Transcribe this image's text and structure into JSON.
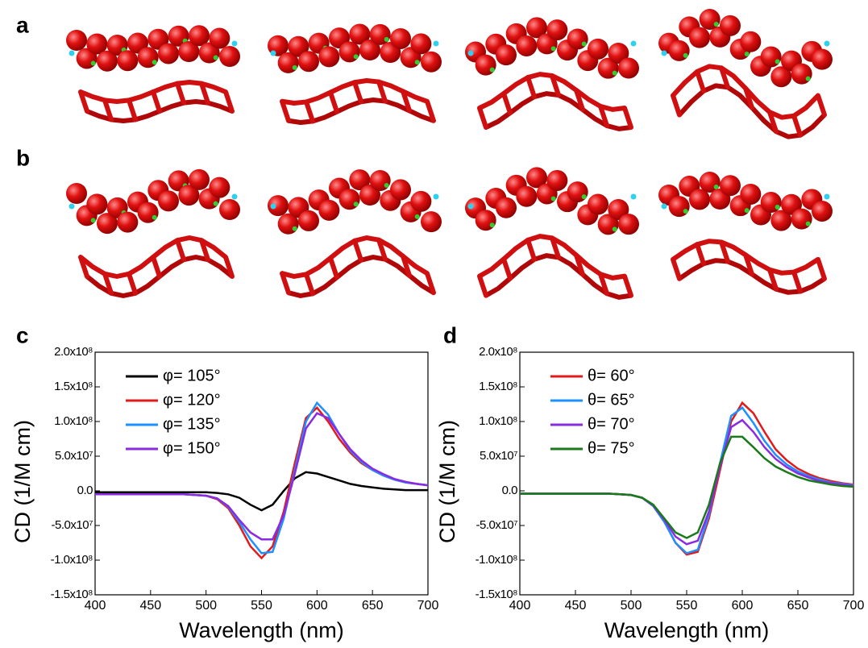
{
  "panel_labels": [
    "a",
    "b",
    "c",
    "d"
  ],
  "chart_data": [
    {
      "type": "line",
      "ylabel": "CD (1/M cm)",
      "xlabel": "Wavelength (nm)",
      "xlim": [
        400,
        700
      ],
      "xticks": [
        400,
        450,
        500,
        550,
        600,
        650,
        700
      ],
      "ylim": [
        -150000000.0,
        200000000.0
      ],
      "yticks": [
        {
          "value": -150000000.0,
          "label": "-1.5x10⁸"
        },
        {
          "value": -100000000.0,
          "label": "-1.0x10⁸"
        },
        {
          "value": -50000000.0,
          "label": "-5.0x10⁷"
        },
        {
          "value": 0,
          "label": "0.0"
        },
        {
          "value": 50000000.0,
          "label": "5.0x10⁷"
        },
        {
          "value": 100000000.0,
          "label": "1.0x10⁸"
        },
        {
          "value": 150000000.0,
          "label": "1.5x10⁸"
        },
        {
          "value": 200000000.0,
          "label": "2.0x10⁸"
        }
      ],
      "legend": "upper left",
      "x": [
        400,
        410,
        420,
        430,
        440,
        450,
        460,
        470,
        480,
        490,
        500,
        510,
        520,
        530,
        540,
        550,
        560,
        570,
        580,
        590,
        600,
        610,
        620,
        630,
        640,
        650,
        660,
        670,
        680,
        690,
        700
      ],
      "series": [
        {
          "name": "φ= 105°",
          "color": "#000000",
          "values": [
            -2000000.0,
            -2000000.0,
            -2000000.0,
            -2000000.0,
            -2000000.0,
            -2000000.0,
            -2000000.0,
            -2000000.0,
            -2000000.0,
            -2000000.0,
            -2000000.0,
            -3000000.0,
            -5000000.0,
            -10000000.0,
            -20000000.0,
            -28000000.0,
            -20000000.0,
            0,
            18000000.0,
            27000000.0,
            25000000.0,
            20000000.0,
            15000000.0,
            10000000.0,
            7000000.0,
            5000000.0,
            3000000.0,
            2000000.0,
            1000000.0,
            1000000.0,
            1000000.0
          ]
        },
        {
          "name": "φ= 120°",
          "color": "#e31a1c",
          "values": [
            -5000000.0,
            -5000000.0,
            -5000000.0,
            -5000000.0,
            -5000000.0,
            -5000000.0,
            -5000000.0,
            -5000000.0,
            -5000000.0,
            -6000000.0,
            -7000000.0,
            -12000000.0,
            -25000000.0,
            -50000000.0,
            -80000000.0,
            -97000000.0,
            -80000000.0,
            -30000000.0,
            40000000.0,
            105000000.0,
            120000000.0,
            100000000.0,
            75000000.0,
            55000000.0,
            40000000.0,
            30000000.0,
            22000000.0,
            16000000.0,
            12000000.0,
            10000000.0,
            8000000.0
          ]
        },
        {
          "name": "φ= 135°",
          "color": "#1e90ff",
          "values": [
            -5000000.0,
            -5000000.0,
            -5000000.0,
            -5000000.0,
            -5000000.0,
            -5000000.0,
            -5000000.0,
            -5000000.0,
            -5000000.0,
            -6000000.0,
            -7000000.0,
            -11000000.0,
            -23000000.0,
            -45000000.0,
            -70000000.0,
            -90000000.0,
            -88000000.0,
            -40000000.0,
            30000000.0,
            100000000.0,
            127000000.0,
            110000000.0,
            82000000.0,
            58000000.0,
            42000000.0,
            30000000.0,
            22000000.0,
            16000000.0,
            12000000.0,
            10000000.0,
            8000000.0
          ]
        },
        {
          "name": "φ= 150°",
          "color": "#8a2be2",
          "values": [
            -5000000.0,
            -5000000.0,
            -5000000.0,
            -5000000.0,
            -5000000.0,
            -5000000.0,
            -5000000.0,
            -5000000.0,
            -5000000.0,
            -6000000.0,
            -7000000.0,
            -11000000.0,
            -22000000.0,
            -42000000.0,
            -60000000.0,
            -70000000.0,
            -70000000.0,
            -35000000.0,
            25000000.0,
            90000000.0,
            112000000.0,
            105000000.0,
            82000000.0,
            60000000.0,
            44000000.0,
            32000000.0,
            24000000.0,
            17000000.0,
            13000000.0,
            10000000.0,
            8000000.0
          ]
        }
      ]
    },
    {
      "type": "line",
      "ylabel": "CD (1/M cm)",
      "xlabel": "Wavelength (nm)",
      "xlim": [
        400,
        700
      ],
      "xticks": [
        400,
        450,
        500,
        550,
        600,
        650,
        700
      ],
      "ylim": [
        -150000000.0,
        200000000.0
      ],
      "yticks": [
        {
          "value": -150000000.0,
          "label": "-1.5x10⁸"
        },
        {
          "value": -100000000.0,
          "label": "-1.0x10⁸"
        },
        {
          "value": -50000000.0,
          "label": "-5.0x10⁷"
        },
        {
          "value": 0,
          "label": "0.0"
        },
        {
          "value": 50000000.0,
          "label": "5.0x10⁷"
        },
        {
          "value": 100000000.0,
          "label": "1.0x10⁸"
        },
        {
          "value": 150000000.0,
          "label": "1.5x10⁸"
        },
        {
          "value": 200000000.0,
          "label": "2.0x10⁸"
        }
      ],
      "legend": "upper left",
      "x": [
        400,
        410,
        420,
        430,
        440,
        450,
        460,
        470,
        480,
        490,
        500,
        510,
        520,
        530,
        540,
        550,
        560,
        570,
        580,
        590,
        600,
        610,
        620,
        630,
        640,
        650,
        660,
        670,
        680,
        690,
        700
      ],
      "series": [
        {
          "name": "θ= 60°",
          "color": "#e31a1c",
          "values": [
            -4000000.0,
            -4000000.0,
            -4000000.0,
            -4000000.0,
            -4000000.0,
            -4000000.0,
            -4000000.0,
            -4000000.0,
            -4000000.0,
            -5000000.0,
            -6000000.0,
            -10000000.0,
            -22000000.0,
            -45000000.0,
            -75000000.0,
            -92000000.0,
            -88000000.0,
            -40000000.0,
            30000000.0,
            100000000.0,
            127000000.0,
            112000000.0,
            85000000.0,
            60000000.0,
            44000000.0,
            32000000.0,
            24000000.0,
            18000000.0,
            14000000.0,
            11000000.0,
            9000000.0
          ]
        },
        {
          "name": "θ= 65°",
          "color": "#1e90ff",
          "values": [
            -4000000.0,
            -4000000.0,
            -4000000.0,
            -4000000.0,
            -4000000.0,
            -4000000.0,
            -4000000.0,
            -4000000.0,
            -4000000.0,
            -5000000.0,
            -6000000.0,
            -10000000.0,
            -22000000.0,
            -45000000.0,
            -75000000.0,
            -90000000.0,
            -85000000.0,
            -35000000.0,
            40000000.0,
            108000000.0,
            120000000.0,
            98000000.0,
            72000000.0,
            52000000.0,
            38000000.0,
            28000000.0,
            21000000.0,
            16000000.0,
            12000000.0,
            10000000.0,
            8000000.0
          ]
        },
        {
          "name": "θ= 70°",
          "color": "#8a2be2",
          "values": [
            -4000000.0,
            -4000000.0,
            -4000000.0,
            -4000000.0,
            -4000000.0,
            -4000000.0,
            -4000000.0,
            -4000000.0,
            -4000000.0,
            -5000000.0,
            -6000000.0,
            -10000000.0,
            -21000000.0,
            -42000000.0,
            -66000000.0,
            -77000000.0,
            -72000000.0,
            -30000000.0,
            35000000.0,
            92000000.0,
            102000000.0,
            85000000.0,
            63000000.0,
            46000000.0,
            34000000.0,
            25000000.0,
            19000000.0,
            14000000.0,
            11000000.0,
            9000000.0,
            7000000.0
          ]
        },
        {
          "name": "θ= 75°",
          "color": "#1a7a1a",
          "values": [
            -4000000.0,
            -4000000.0,
            -4000000.0,
            -4000000.0,
            -4000000.0,
            -4000000.0,
            -4000000.0,
            -4000000.0,
            -4000000.0,
            -5000000.0,
            -6000000.0,
            -10000000.0,
            -20000000.0,
            -40000000.0,
            -60000000.0,
            -68000000.0,
            -60000000.0,
            -20000000.0,
            40000000.0,
            78000000.0,
            78000000.0,
            63000000.0,
            47000000.0,
            35000000.0,
            27000000.0,
            20000000.0,
            15000000.0,
            12000000.0,
            9000000.0,
            7000000.0,
            6000000.0
          ]
        }
      ]
    }
  ]
}
